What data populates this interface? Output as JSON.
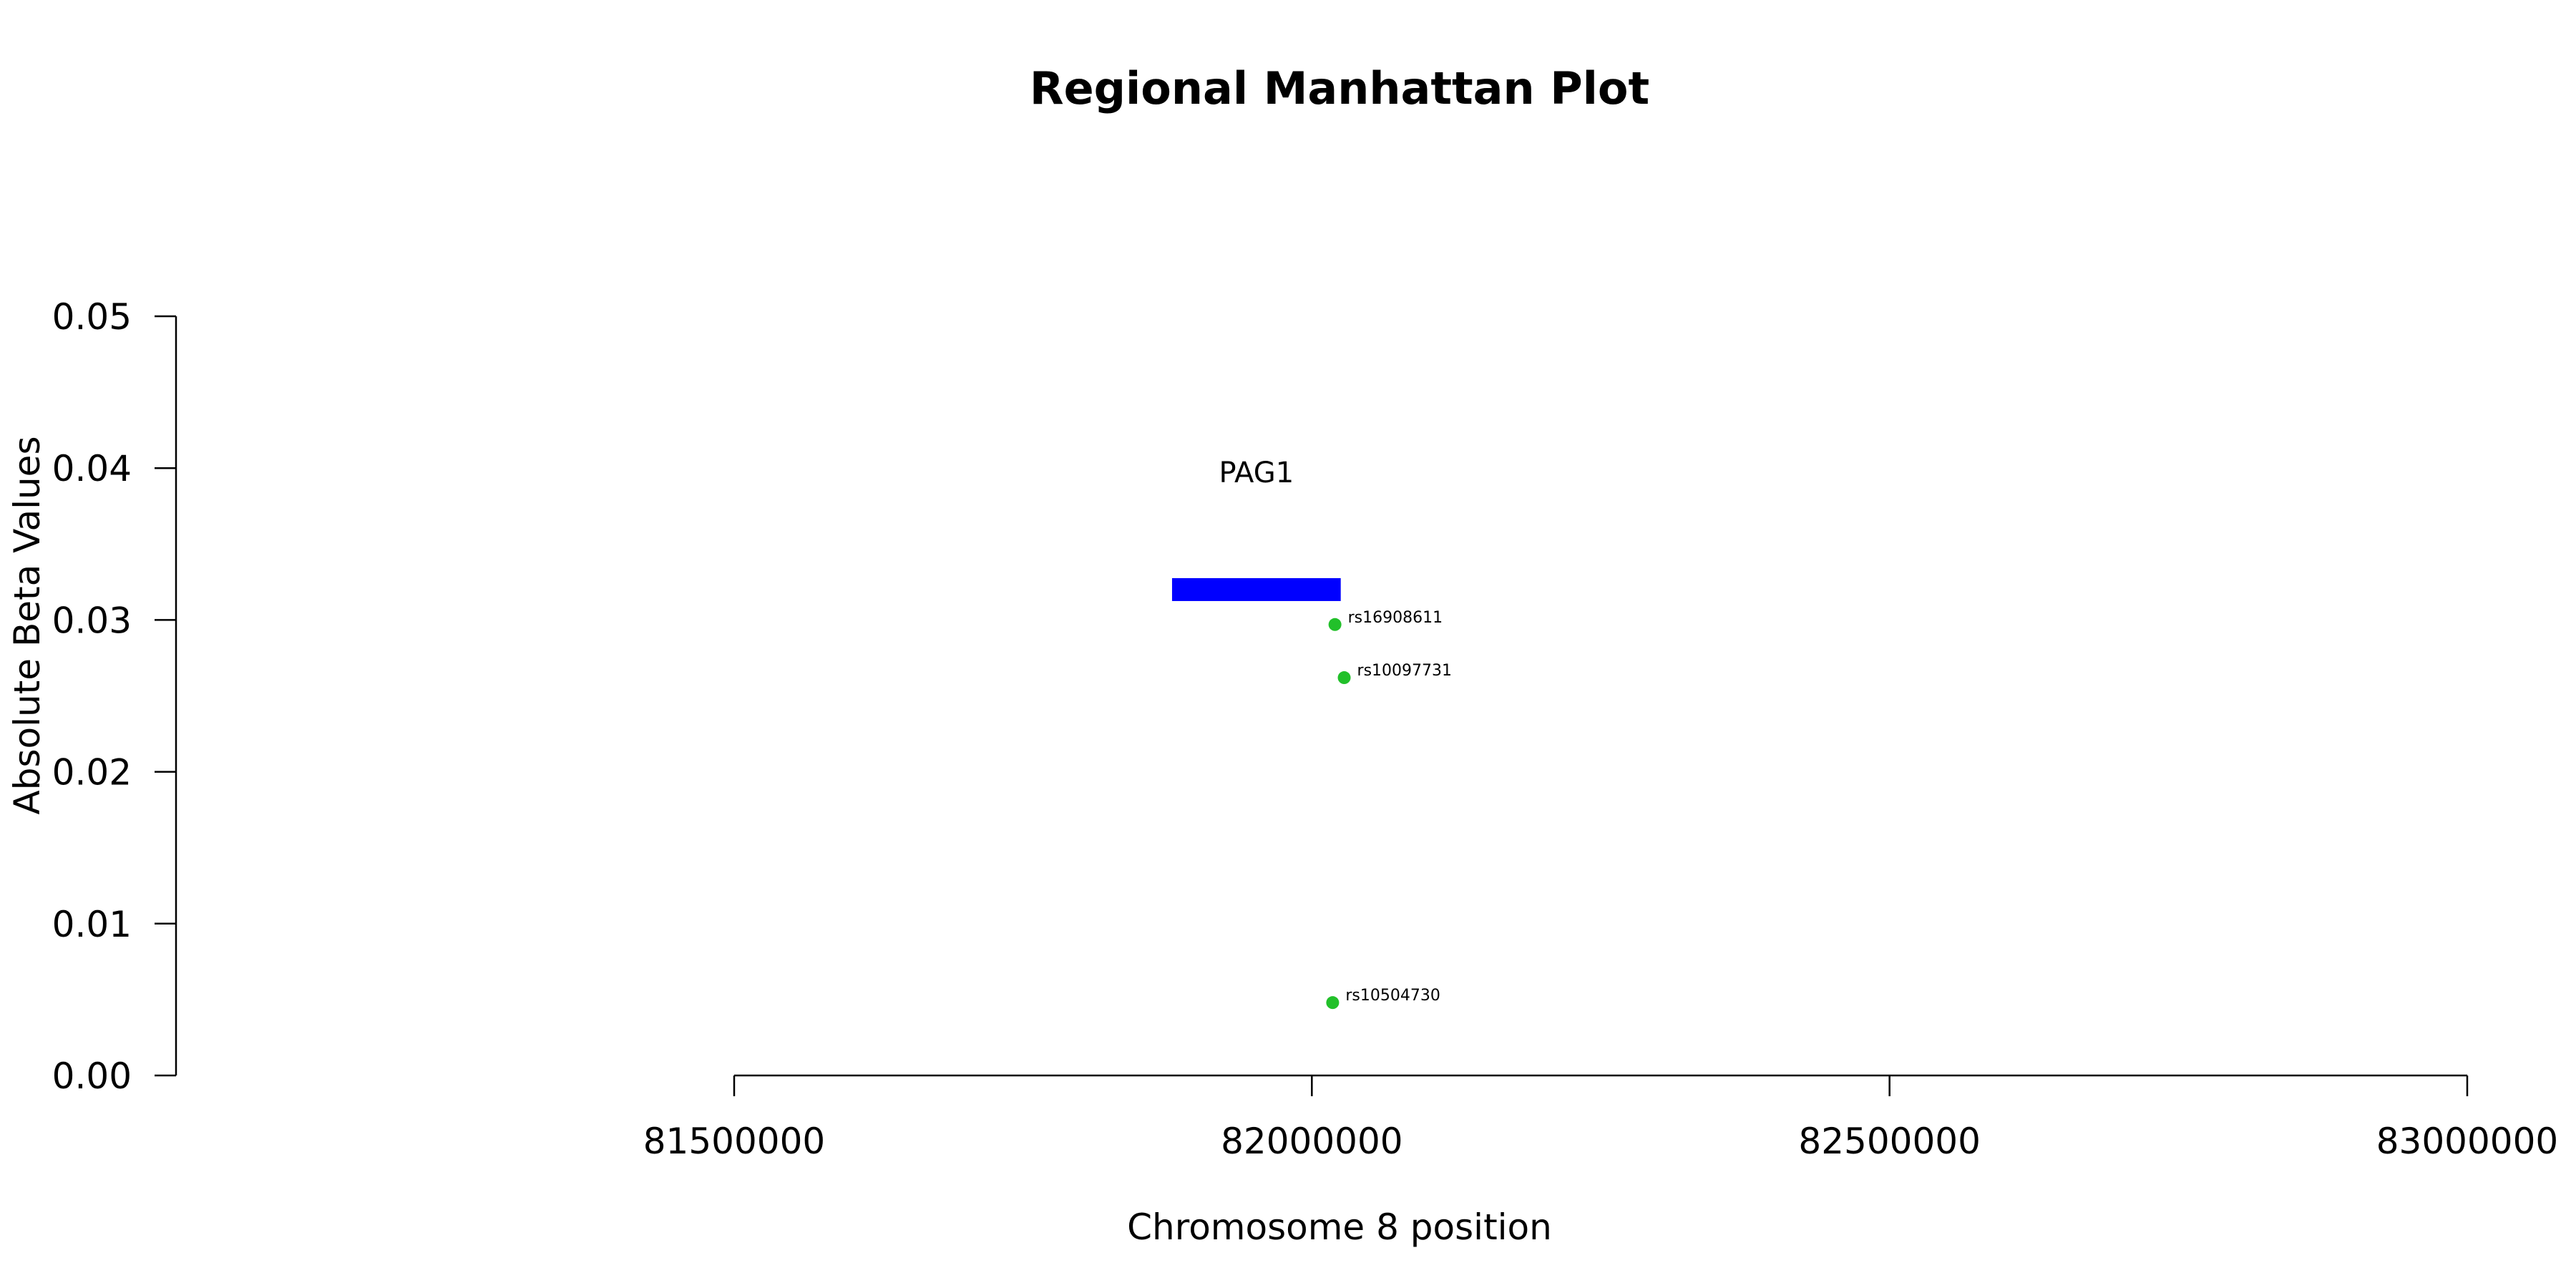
{
  "chart_data": {
    "type": "scatter",
    "title": "Regional Manhattan Plot",
    "xlabel": "Chromosome 8 position",
    "ylabel": "Absolute Beta Values",
    "xlim": [
      81500000,
      83000000
    ],
    "ylim": [
      0,
      0.05
    ],
    "x_ticks": [
      81500000,
      82000000,
      82500000,
      83000000
    ],
    "x_tick_labels": [
      "81500000",
      "82000000",
      "82500000",
      "83000000"
    ],
    "y_ticks": [
      0,
      0.01,
      0.02,
      0.03,
      0.04,
      0.05
    ],
    "y_tick_labels": [
      "0.00",
      "0.01",
      "0.02",
      "0.03",
      "0.04",
      "0.05"
    ],
    "grid": false,
    "legend": "none",
    "points": [
      {
        "label": "rs16908611",
        "x": 82020000,
        "y": 0.0297
      },
      {
        "label": "rs10097731",
        "x": 82028000,
        "y": 0.0262
      },
      {
        "label": "rs10504730",
        "x": 82018000,
        "y": 0.0048
      }
    ],
    "genes": [
      {
        "name": "PAG1",
        "start": 81879000,
        "end": 82025000,
        "y": 0.032
      }
    ]
  },
  "colors": {
    "point": "#22c02a",
    "gene": "#0000ff",
    "axis": "#000000",
    "text": "#000000"
  }
}
